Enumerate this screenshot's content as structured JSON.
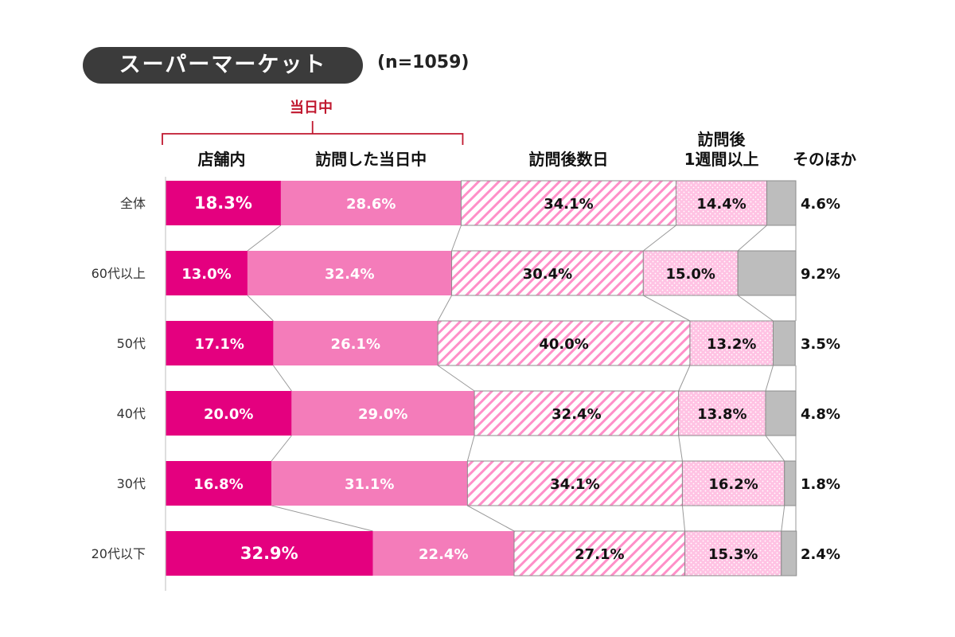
{
  "header": {
    "title": "スーパーマーケット",
    "sample": "(n=1059)",
    "bracket_label": "当日中"
  },
  "colors": {
    "in_store": "#e4007f",
    "same_day": "#f47cba",
    "days_after": "#ff8fc8",
    "week_after": "#ffc2e3",
    "other": "#bdbdbd",
    "bracket": "#c0182f"
  },
  "chart_data": {
    "type": "bar",
    "orientation": "horizontal",
    "stacked": true,
    "percent": true,
    "categories": [
      "全体",
      "60代以上",
      "50代",
      "40代",
      "30代",
      "20代以下"
    ],
    "series": [
      {
        "name": "店舗内",
        "values": [
          18.3,
          13.0,
          17.1,
          20.0,
          16.8,
          32.9
        ]
      },
      {
        "name": "訪問した当日中",
        "values": [
          28.6,
          32.4,
          26.1,
          29.0,
          31.1,
          22.4
        ]
      },
      {
        "name": "訪問後数日",
        "values": [
          34.1,
          30.4,
          40.0,
          32.4,
          34.1,
          27.1
        ]
      },
      {
        "name": "訪問後\n1週間以上",
        "values": [
          14.4,
          15.0,
          13.2,
          13.8,
          16.2,
          15.3
        ]
      },
      {
        "name": "そのほか",
        "values": [
          4.6,
          9.2,
          3.5,
          4.8,
          1.8,
          2.4
        ]
      }
    ],
    "value_labels": [
      [
        "18.3%",
        "28.6%",
        "34.1%",
        "14.4%",
        "4.6%"
      ],
      [
        "13.0%",
        "32.4%",
        "30.4%",
        "15.0%",
        "9.2%"
      ],
      [
        "17.1%",
        "26.1%",
        "40.0%",
        "13.2%",
        "3.5%"
      ],
      [
        "20.0%",
        "29.0%",
        "32.4%",
        "13.8%",
        "4.8%"
      ],
      [
        "16.8%",
        "31.1%",
        "34.1%",
        "16.2%",
        "1.8%"
      ],
      [
        "32.9%",
        "22.4%",
        "27.1%",
        "15.3%",
        "2.4%"
      ]
    ],
    "xlim": [
      0,
      100
    ],
    "grid": false,
    "legend": "top"
  }
}
